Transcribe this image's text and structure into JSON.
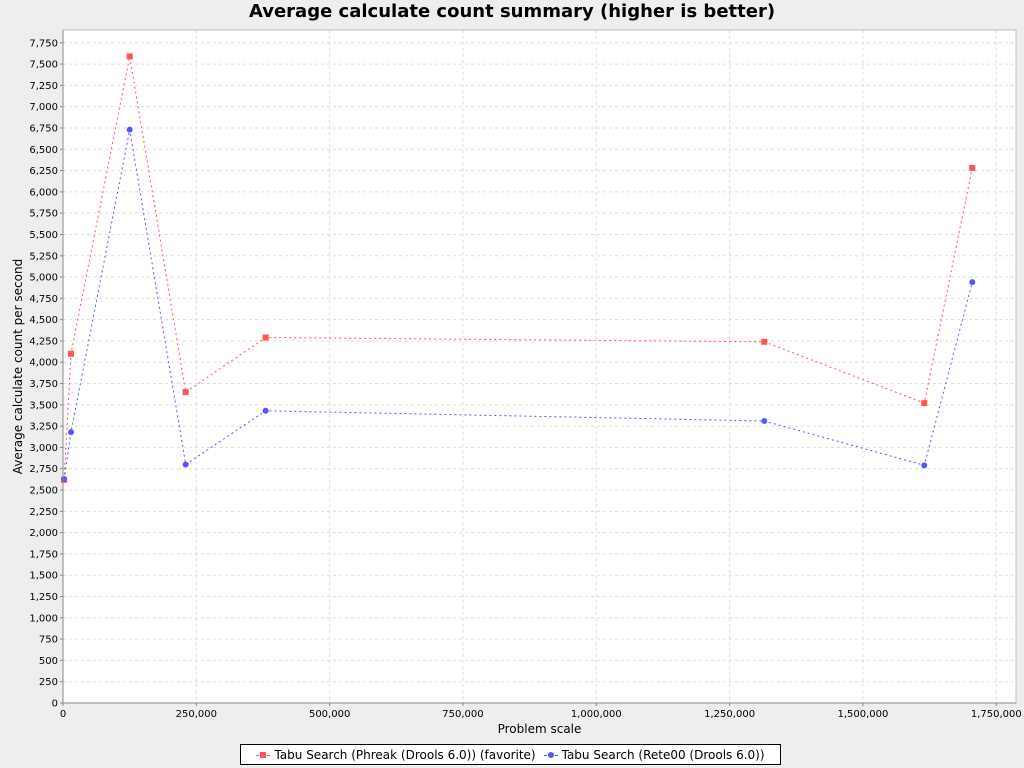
{
  "chart_data": {
    "type": "line",
    "title": "Average calculate count summary (higher is better)",
    "xlabel": "Problem scale",
    "ylabel": "Average calculate count per second",
    "xlim": [
      0,
      1787000
    ],
    "ylim": [
      0,
      7900
    ],
    "xticks": [
      0,
      250000,
      500000,
      750000,
      1000000,
      1250000,
      1500000,
      1750000
    ],
    "yticks": [
      0,
      250,
      500,
      750,
      1000,
      1250,
      1500,
      1750,
      2000,
      2250,
      2500,
      2750,
      3000,
      3250,
      3500,
      3750,
      4000,
      4250,
      4500,
      4750,
      5000,
      5250,
      5500,
      5750,
      6000,
      6250,
      6500,
      6750,
      7000,
      7250,
      7500,
      7750
    ],
    "grid": true,
    "legend_position": "bottom",
    "series": [
      {
        "name": "Tabu Search (Phreak (Drools 6.0)) (favorite)",
        "color": "#ff5555",
        "marker": "square",
        "x": [
          2000,
          15000,
          125000,
          230000,
          380000,
          1315000,
          1615000,
          1705000
        ],
        "y": [
          2620,
          4100,
          7590,
          3650,
          4290,
          4240,
          3520,
          6280
        ]
      },
      {
        "name": "Tabu Search (Rete00 (Drools 6.0))",
        "color": "#5555ff",
        "marker": "circle",
        "x": [
          2000,
          15000,
          125000,
          230000,
          380000,
          1315000,
          1615000,
          1705000
        ],
        "y": [
          2630,
          3180,
          6730,
          2800,
          3430,
          3310,
          2790,
          4940
        ]
      }
    ]
  }
}
